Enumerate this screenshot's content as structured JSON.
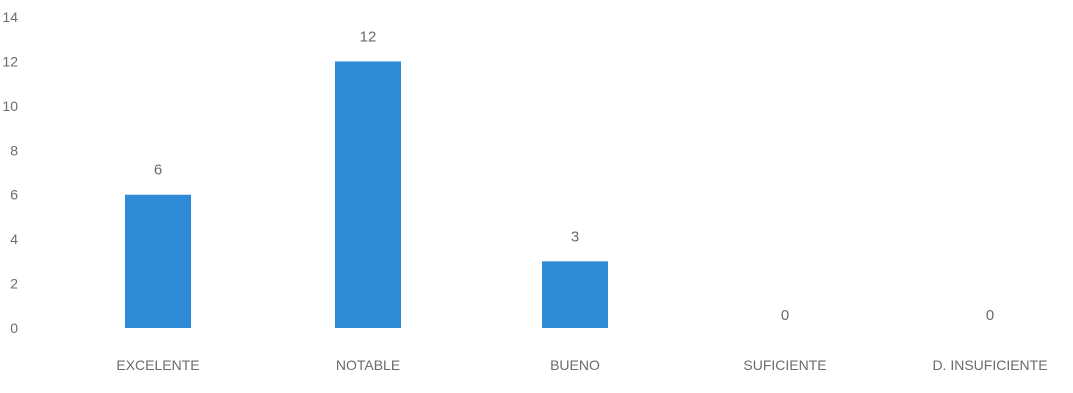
{
  "chart_data": {
    "type": "bar",
    "title": "",
    "xlabel": "",
    "ylabel": "",
    "categories": [
      "EXCELENTE",
      "NOTABLE",
      "BUENO",
      "SUFICIENTE",
      "D. INSUFICIENTE"
    ],
    "values": [
      6,
      12,
      3,
      0,
      0
    ],
    "data_labels": [
      "6",
      "12",
      "3",
      "0",
      "0"
    ],
    "ylim": [
      0,
      14
    ],
    "yticks": [
      "0",
      "2",
      "4",
      "6",
      "8",
      "10",
      "12",
      "14"
    ],
    "grid": false,
    "legend": "none",
    "bar_color": "#2E8BD8",
    "text_color": "#6b6b6b"
  }
}
